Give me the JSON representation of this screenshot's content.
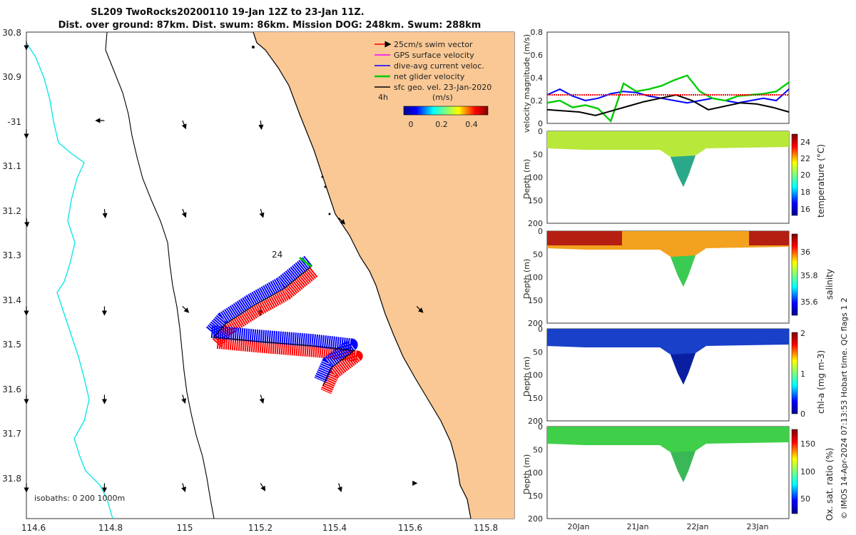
{
  "title": {
    "line1": "SL209 TwoRocks20200110 19-Jan 12Z to 23-Jan 11Z.",
    "line2": "Dist. over ground: 87km. Dist. swum: 86km. Mission DOG: 248km. Swum: 288km"
  },
  "colors": {
    "land": "#f9c895",
    "swim": "#ff0000",
    "gps": "#ff00ff",
    "dac": "#0000ff",
    "net": "#00cc00",
    "geo": "#000000",
    "coast_isobath": "#00e5e5"
  },
  "chart_data": [
    {
      "type": "scatter",
      "title": "",
      "xlim": [
        114.6,
        115.85
      ],
      "ylim": [
        -31.9,
        -30.8
      ],
      "x_ticks": [
        114.6,
        114.8,
        115,
        115.2,
        115.4,
        115.6,
        115.8
      ],
      "x_tick_labels": [
        "114.6",
        "114.8",
        "115",
        "115.2",
        "115.4",
        "115.6",
        "115.8"
      ],
      "y_ticks": [
        -30.8,
        -30.9,
        -31.0,
        -31.1,
        -31.2,
        -31.3,
        -31.4,
        -31.5,
        -31.6,
        -31.7,
        -31.8
      ],
      "y_tick_labels": [
        "30.8",
        "30.9",
        "-31",
        "31.1",
        "31.2",
        "31.3",
        "31.4",
        "31.5",
        "31.6",
        "31.7",
        "31.8"
      ],
      "legend": [
        {
          "label": "25cm/s swim vector",
          "color": "#ff0000"
        },
        {
          "label": "GPS surface velocity",
          "color": "#ff00ff"
        },
        {
          "label": "dive-avg current veloc.",
          "color": "#0000ff"
        },
        {
          "label": "net glider velocity",
          "color": "#00cc00"
        },
        {
          "label": "sfc geo. vel. 23-Jan-2020",
          "color": "#000000"
        }
      ],
      "legend_placement": "top-right",
      "colorbar": {
        "label": "(m/s)",
        "ticks": [
          "0",
          "0.2",
          "0.4"
        ],
        "range": [
          0,
          0.5
        ]
      },
      "annotations": [
        "4h",
        "24"
      ],
      "isobath_label": "isobaths: 0   200  1000m",
      "track": [
        {
          "lon": 115.33,
          "lat": -31.33
        },
        {
          "lon": 115.26,
          "lat": -31.38
        },
        {
          "lon": 115.18,
          "lat": -31.42
        },
        {
          "lon": 115.11,
          "lat": -31.46
        },
        {
          "lon": 115.08,
          "lat": -31.49
        },
        {
          "lon": 115.2,
          "lat": -31.5
        },
        {
          "lon": 115.34,
          "lat": -31.51
        },
        {
          "lon": 115.44,
          "lat": -31.52
        },
        {
          "lon": 115.38,
          "lat": -31.56
        },
        {
          "lon": 115.36,
          "lat": -31.6
        }
      ],
      "geo_arrows": [
        {
          "lon": 114.6,
          "lat": -30.82,
          "u": 0,
          "v": -1
        },
        {
          "lon": 114.6,
          "lat": -31.02,
          "u": 0,
          "v": -1
        },
        {
          "lon": 114.6,
          "lat": -31.22,
          "u": 0.1,
          "v": -1
        },
        {
          "lon": 114.6,
          "lat": -31.42,
          "u": 0,
          "v": -1
        },
        {
          "lon": 114.6,
          "lat": -31.62,
          "u": 0,
          "v": -1
        },
        {
          "lon": 114.6,
          "lat": -31.82,
          "u": 0,
          "v": -1
        },
        {
          "lon": 114.8,
          "lat": -31.0,
          "u": -1,
          "v": 0
        },
        {
          "lon": 114.8,
          "lat": -31.2,
          "u": 0.1,
          "v": -1
        },
        {
          "lon": 114.8,
          "lat": -31.42,
          "u": 0,
          "v": -1
        },
        {
          "lon": 114.8,
          "lat": -31.62,
          "u": 0,
          "v": -1
        },
        {
          "lon": 114.8,
          "lat": -31.82,
          "u": 0,
          "v": -1
        },
        {
          "lon": 115.0,
          "lat": -31.0,
          "u": 0.4,
          "v": -1
        },
        {
          "lon": 115.0,
          "lat": -31.2,
          "u": 0.4,
          "v": -1
        },
        {
          "lon": 115.0,
          "lat": -31.42,
          "u": 0.5,
          "v": -0.5
        },
        {
          "lon": 115.0,
          "lat": -31.62,
          "u": 0.3,
          "v": -1
        },
        {
          "lon": 115.0,
          "lat": -31.82,
          "u": 0.3,
          "v": -1
        },
        {
          "lon": 115.2,
          "lat": -31.0,
          "u": 0.1,
          "v": -1
        },
        {
          "lon": 115.2,
          "lat": -31.2,
          "u": 0.3,
          "v": -1
        },
        {
          "lon": 115.2,
          "lat": -31.42,
          "u": 0,
          "v": -1
        },
        {
          "lon": 115.2,
          "lat": -31.62,
          "u": 0.3,
          "v": -1
        },
        {
          "lon": 115.2,
          "lat": -31.82,
          "u": 0.6,
          "v": -1
        },
        {
          "lon": 115.4,
          "lat": -31.22,
          "u": 0.5,
          "v": -0.5
        },
        {
          "lon": 115.4,
          "lat": -31.82,
          "u": 0.3,
          "v": -1
        },
        {
          "lon": 115.6,
          "lat": -31.42,
          "u": 0.5,
          "v": -0.5
        },
        {
          "lon": 115.6,
          "lat": -31.82,
          "u": 0,
          "v": 0
        }
      ]
    },
    {
      "type": "line",
      "title": "",
      "ylabel": "velocity magnitude (m/s)",
      "ylim": [
        0,
        0.8
      ],
      "y_ticks": [
        "0",
        "0.2",
        "0.4",
        "0.6",
        "0.8"
      ],
      "x_tick_labels": [
        "20Jan",
        "21Jan",
        "22Jan",
        "23Jan"
      ],
      "series": [
        {
          "color": "#0000ff",
          "values": [
            0.25,
            0.3,
            0.24,
            0.2,
            0.22,
            0.26,
            0.28,
            0.27,
            0.24,
            0.22,
            0.2,
            0.18,
            0.2,
            0.22,
            0.2,
            0.18,
            0.2,
            0.22,
            0.2,
            0.3
          ]
        },
        {
          "color": "#00cc00",
          "values": [
            0.18,
            0.2,
            0.14,
            0.16,
            0.13,
            0.02,
            0.35,
            0.28,
            0.3,
            0.33,
            0.38,
            0.42,
            0.28,
            0.22,
            0.2,
            0.24,
            0.25,
            0.26,
            0.28,
            0.36
          ]
        },
        {
          "color": "#000000",
          "values": [
            0.12,
            0.11,
            0.1,
            0.07,
            0.11,
            0.15,
            0.19,
            0.22,
            0.25,
            0.2,
            0.12,
            0.15,
            0.18,
            0.17,
            0.14,
            0.1
          ]
        },
        {
          "color": "#ff0000",
          "values": [
            0.25,
            0.25,
            0.25,
            0.25,
            0.25,
            0.25,
            0.25,
            0.25,
            0.25,
            0.25
          ]
        }
      ]
    },
    {
      "type": "heatmap",
      "ylabel": "Depth (m)",
      "y_ticks": [
        "0",
        "50",
        "100",
        "150",
        "200"
      ],
      "colorbar": {
        "label": "temperature (°C)",
        "ticks": [
          "24",
          "22",
          "20",
          "18",
          "16"
        ]
      }
    },
    {
      "type": "heatmap",
      "ylabel": "Depth (m)",
      "y_ticks": [
        "0",
        "50",
        "100",
        "150",
        "200"
      ],
      "colorbar": {
        "label": "salinity",
        "ticks": [
          "36",
          "35.8",
          "35.6"
        ]
      }
    },
    {
      "type": "heatmap",
      "ylabel": "Depth (m)",
      "y_ticks": [
        "0",
        "50",
        "100",
        "150",
        "200"
      ],
      "colorbar": {
        "label": "chl-a (mg m-3)",
        "ticks": [
          "2",
          "1",
          "0"
        ]
      }
    },
    {
      "type": "heatmap",
      "ylabel": "Depth (m)",
      "y_ticks": [
        "0",
        "50",
        "100",
        "150",
        "200"
      ],
      "colorbar": {
        "label": "Ox. sat. ratio (%)",
        "ticks": [
          "150",
          "100",
          "50"
        ]
      }
    }
  ],
  "footer": {
    "side_text": "© IMOS 14-Apr-2024 07:13:53 Hobart time. QC flags 1  2"
  }
}
